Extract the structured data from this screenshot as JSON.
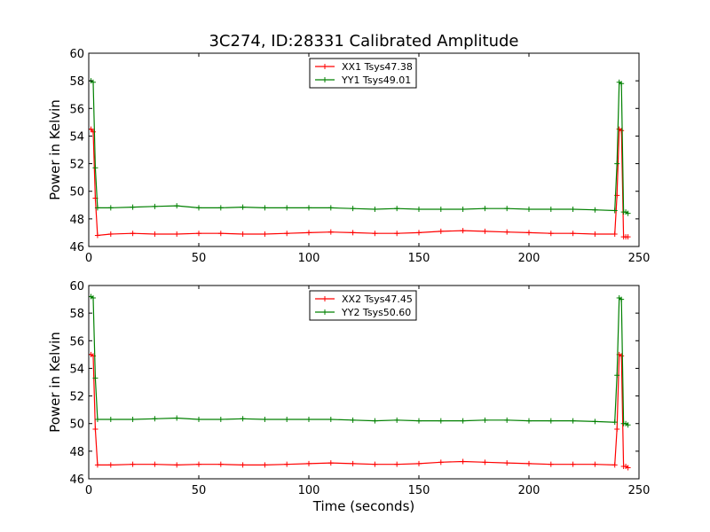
{
  "figure": {
    "title": "3C274, ID:28331 Calibrated Amplitude"
  },
  "colors": {
    "xx": "#ff0000",
    "yy": "#008000"
  },
  "chart_data": [
    {
      "type": "line",
      "title": "3C274, ID:28331 Calibrated Amplitude",
      "xlabel": "",
      "ylabel": "Power in Kelvin",
      "xlim": [
        0,
        250
      ],
      "ylim": [
        46,
        60
      ],
      "xticks": [
        0,
        50,
        100,
        150,
        200,
        250
      ],
      "yticks": [
        46,
        48,
        50,
        52,
        54,
        56,
        58,
        60
      ],
      "grid": false,
      "legend": "top-center",
      "markers": "plus",
      "series": [
        {
          "name": "XX1 Tsys47.38",
          "color": "#ff0000",
          "x": [
            0,
            1,
            2,
            3,
            4,
            10,
            20,
            30,
            40,
            50,
            60,
            70,
            80,
            90,
            100,
            110,
            120,
            130,
            140,
            150,
            160,
            170,
            180,
            190,
            200,
            210,
            220,
            230,
            239,
            240,
            241,
            242,
            243,
            244,
            245
          ],
          "y": [
            54.5,
            54.5,
            54.3,
            49.5,
            46.8,
            46.9,
            46.95,
            46.9,
            46.9,
            46.95,
            46.95,
            46.9,
            46.9,
            46.95,
            47.0,
            47.05,
            47.0,
            46.95,
            46.95,
            47.0,
            47.1,
            47.15,
            47.1,
            47.05,
            47.0,
            46.95,
            46.95,
            46.9,
            46.9,
            49.7,
            54.5,
            54.4,
            46.7,
            46.7,
            46.7
          ]
        },
        {
          "name": "YY1 Tsys49.01",
          "color": "#008000",
          "x": [
            0,
            1,
            2,
            3,
            4,
            10,
            20,
            30,
            40,
            50,
            60,
            70,
            80,
            90,
            100,
            110,
            120,
            130,
            140,
            150,
            160,
            170,
            180,
            190,
            200,
            210,
            220,
            230,
            239,
            240,
            241,
            242,
            243,
            244,
            245
          ],
          "y": [
            58.0,
            58.0,
            57.9,
            51.7,
            48.8,
            48.8,
            48.85,
            48.9,
            48.95,
            48.8,
            48.8,
            48.85,
            48.8,
            48.8,
            48.8,
            48.8,
            48.75,
            48.7,
            48.75,
            48.7,
            48.7,
            48.7,
            48.75,
            48.75,
            48.7,
            48.7,
            48.7,
            48.65,
            48.6,
            52.0,
            57.9,
            57.8,
            48.5,
            48.5,
            48.4
          ]
        }
      ]
    },
    {
      "type": "line",
      "title": "",
      "xlabel": "Time (seconds)",
      "ylabel": "Power in Kelvin",
      "xlim": [
        0,
        250
      ],
      "ylim": [
        46,
        60
      ],
      "xticks": [
        0,
        50,
        100,
        150,
        200,
        250
      ],
      "yticks": [
        46,
        48,
        50,
        52,
        54,
        56,
        58,
        60
      ],
      "grid": false,
      "legend": "top-center",
      "markers": "plus",
      "series": [
        {
          "name": "XX2 Tsys47.45",
          "color": "#ff0000",
          "x": [
            0,
            1,
            2,
            3,
            4,
            10,
            20,
            30,
            40,
            50,
            60,
            70,
            80,
            90,
            100,
            110,
            120,
            130,
            140,
            150,
            160,
            170,
            180,
            190,
            200,
            210,
            220,
            230,
            239,
            240,
            241,
            242,
            243,
            244,
            245
          ],
          "y": [
            55.0,
            55.0,
            54.9,
            49.6,
            47.0,
            47.0,
            47.05,
            47.05,
            47.0,
            47.05,
            47.05,
            47.0,
            47.0,
            47.05,
            47.1,
            47.15,
            47.1,
            47.05,
            47.05,
            47.1,
            47.2,
            47.25,
            47.2,
            47.15,
            47.1,
            47.05,
            47.05,
            47.05,
            47.0,
            49.6,
            55.0,
            54.9,
            46.9,
            46.9,
            46.8
          ]
        },
        {
          "name": "YY2 Tsys50.60",
          "color": "#008000",
          "x": [
            0,
            1,
            2,
            3,
            4,
            10,
            20,
            30,
            40,
            50,
            60,
            70,
            80,
            90,
            100,
            110,
            120,
            130,
            140,
            150,
            160,
            170,
            180,
            190,
            200,
            210,
            220,
            230,
            239,
            240,
            241,
            242,
            243,
            244,
            245
          ],
          "y": [
            59.2,
            59.2,
            59.1,
            53.3,
            50.3,
            50.3,
            50.3,
            50.35,
            50.4,
            50.3,
            50.3,
            50.35,
            50.3,
            50.3,
            50.3,
            50.3,
            50.25,
            50.2,
            50.25,
            50.2,
            50.2,
            50.2,
            50.25,
            50.25,
            50.2,
            50.2,
            50.2,
            50.15,
            50.1,
            53.5,
            59.1,
            59.0,
            50.0,
            50.0,
            49.9
          ]
        }
      ]
    }
  ]
}
